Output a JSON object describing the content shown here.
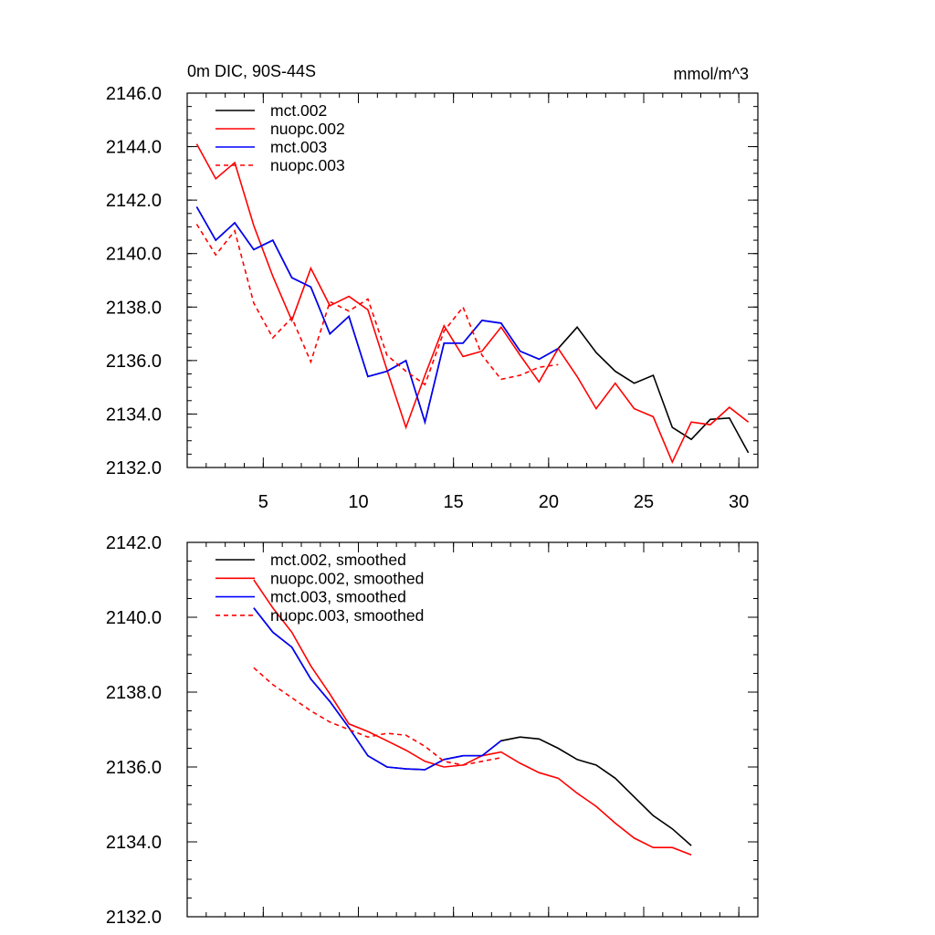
{
  "chart_data": [
    {
      "type": "line",
      "title_left": "0m DIC, 90S-44S",
      "title_right": "mmol/m^3",
      "xlabel": "",
      "ylabel": "",
      "xlim": [
        1,
        31
      ],
      "ylim": [
        2132.0,
        2146.0
      ],
      "yticks": [
        "2132.0",
        "2134.0",
        "2136.0",
        "2138.0",
        "2140.0",
        "2142.0",
        "2144.0",
        "2146.0"
      ],
      "ytick_values": [
        2132,
        2134,
        2136,
        2138,
        2140,
        2142,
        2144,
        2146
      ],
      "xticks": [
        "5",
        "10",
        "15",
        "20",
        "25",
        "30"
      ],
      "xtick_values": [
        5,
        10,
        15,
        20,
        25,
        30
      ],
      "legend_position": "top-left",
      "series": [
        {
          "name": "mct.002",
          "color": "#000000",
          "dash": "solid",
          "x": [
            1.5,
            2.5,
            3.5,
            4.5,
            5.5,
            6.5,
            7.5,
            8.5,
            9.5,
            10.5,
            11.5,
            12.5,
            13.5,
            14.5,
            15.5,
            16.5,
            17.5,
            18.5,
            19.5,
            20.5,
            21.5,
            22.5,
            23.5,
            24.5,
            25.5,
            26.5,
            27.5,
            28.5,
            29.5,
            30.5
          ],
          "values": [
            2141.75,
            2140.5,
            2141.15,
            2140.15,
            2140.5,
            2139.1,
            2138.75,
            2137.0,
            2137.65,
            2135.4,
            2135.6,
            2136.0,
            2133.7,
            2136.65,
            2136.65,
            2137.5,
            2137.4,
            2136.35,
            2136.05,
            2136.45,
            2137.25,
            2136.3,
            2135.6,
            2135.15,
            2135.45,
            2133.5,
            2133.05,
            2133.8,
            2133.85,
            2132.55
          ]
        },
        {
          "name": "nuopc.002",
          "color": "#ff0000",
          "dash": "solid",
          "x": [
            1.5,
            2.5,
            3.5,
            4.5,
            5.5,
            6.5,
            7.5,
            8.5,
            9.5,
            10.5,
            11.5,
            12.5,
            13.5,
            14.5,
            15.5,
            16.5,
            17.5,
            18.5,
            19.5,
            20.5,
            21.5,
            22.5,
            23.5,
            24.5,
            25.5,
            26.5,
            27.5,
            28.5,
            29.5,
            30.5
          ],
          "values": [
            2144.1,
            2142.8,
            2143.4,
            2141.05,
            2139.15,
            2137.5,
            2139.45,
            2138.05,
            2138.4,
            2137.9,
            2135.65,
            2133.5,
            2135.45,
            2137.3,
            2136.15,
            2136.35,
            2137.25,
            2136.2,
            2135.2,
            2136.45,
            2135.4,
            2134.2,
            2135.15,
            2134.2,
            2133.9,
            2132.2,
            2133.7,
            2133.6,
            2134.25,
            2133.7
          ]
        },
        {
          "name": "mct.003",
          "color": "#0000ff",
          "dash": "solid",
          "x": [
            1.5,
            2.5,
            3.5,
            4.5,
            5.5,
            6.5,
            7.5,
            8.5,
            9.5,
            10.5,
            11.5,
            12.5,
            13.5,
            14.5,
            15.5,
            16.5,
            17.5,
            18.5,
            19.5,
            20.5
          ],
          "values": [
            2141.75,
            2140.5,
            2141.15,
            2140.15,
            2140.5,
            2139.1,
            2138.75,
            2137.0,
            2137.65,
            2135.4,
            2135.6,
            2136.0,
            2133.7,
            2136.65,
            2136.65,
            2137.5,
            2137.4,
            2136.35,
            2136.05,
            2136.45
          ]
        },
        {
          "name": "nuopc.003",
          "color": "#ff0000",
          "dash": "dashed",
          "x": [
            1.5,
            2.5,
            3.5,
            4.5,
            5.5,
            6.5,
            7.5,
            8.5,
            9.5,
            10.5,
            11.5,
            12.5,
            13.5,
            14.5,
            15.5,
            16.5,
            17.5,
            18.5,
            19.5,
            20.5
          ],
          "values": [
            2141.1,
            2139.95,
            2140.85,
            2138.15,
            2136.85,
            2137.6,
            2135.95,
            2138.2,
            2137.85,
            2138.3,
            2136.2,
            2135.6,
            2135.1,
            2137.1,
            2138.0,
            2136.2,
            2135.3,
            2135.45,
            2135.75,
            2135.85
          ]
        }
      ]
    },
    {
      "type": "line",
      "title_left": "",
      "title_right": "",
      "xlabel": "",
      "ylabel": "",
      "xlim": [
        1,
        31
      ],
      "ylim": [
        2132.0,
        2142.0
      ],
      "yticks": [
        "2132.0",
        "2134.0",
        "2136.0",
        "2138.0",
        "2140.0",
        "2142.0"
      ],
      "ytick_values": [
        2132,
        2134,
        2136,
        2138,
        2140,
        2142
      ],
      "xticks": [],
      "xtick_values": [
        5,
        10,
        15,
        20,
        25,
        30
      ],
      "legend_position": "top-left",
      "series": [
        {
          "name": "mct.002, smoothed",
          "color": "#000000",
          "dash": "solid",
          "x": [
            4.5,
            5.5,
            6.5,
            7.5,
            8.5,
            9.5,
            10.5,
            11.5,
            12.5,
            13.5,
            14.5,
            15.5,
            16.5,
            17.5,
            18.5,
            19.5,
            20.5,
            21.5,
            22.5,
            23.5,
            24.5,
            25.5,
            26.5,
            27.5
          ],
          "values": [
            2140.25,
            2139.6,
            2139.2,
            2138.35,
            2137.75,
            2137.05,
            2136.3,
            2136.0,
            2135.95,
            2135.93,
            2136.2,
            2136.3,
            2136.3,
            2136.7,
            2136.8,
            2136.75,
            2136.5,
            2136.2,
            2136.05,
            2135.7,
            2135.2,
            2134.7,
            2134.35,
            2133.9
          ]
        },
        {
          "name": "nuopc.002, smoothed",
          "color": "#ff0000",
          "dash": "solid",
          "x": [
            4.5,
            5.5,
            6.5,
            7.5,
            8.5,
            9.5,
            10.5,
            11.5,
            12.5,
            13.5,
            14.5,
            15.5,
            16.5,
            17.5,
            18.5,
            19.5,
            20.5,
            21.5,
            22.5,
            23.5,
            24.5,
            25.5,
            26.5,
            27.5
          ],
          "values": [
            2141.0,
            2140.25,
            2139.6,
            2138.7,
            2137.95,
            2137.15,
            2136.95,
            2136.7,
            2136.45,
            2136.15,
            2136.0,
            2136.05,
            2136.3,
            2136.4,
            2136.1,
            2135.85,
            2135.7,
            2135.3,
            2134.95,
            2134.5,
            2134.1,
            2133.85,
            2133.85,
            2133.65
          ]
        },
        {
          "name": "mct.003, smoothed",
          "color": "#0000ff",
          "dash": "solid",
          "x": [
            4.5,
            5.5,
            6.5,
            7.5,
            8.5,
            9.5,
            10.5,
            11.5,
            12.5,
            13.5,
            14.5,
            15.5,
            16.5,
            17.5
          ],
          "values": [
            2140.25,
            2139.6,
            2139.2,
            2138.35,
            2137.75,
            2137.05,
            2136.3,
            2136.0,
            2135.95,
            2135.93,
            2136.2,
            2136.3,
            2136.3,
            2136.7
          ]
        },
        {
          "name": "nuopc.003, smoothed",
          "color": "#ff0000",
          "dash": "dashed",
          "x": [
            4.5,
            5.5,
            6.5,
            7.5,
            8.5,
            9.5,
            10.5,
            11.5,
            12.5,
            13.5,
            14.5,
            15.5,
            16.5,
            17.5
          ],
          "values": [
            2138.65,
            2138.2,
            2137.85,
            2137.5,
            2137.2,
            2137.0,
            2136.8,
            2136.9,
            2136.85,
            2136.55,
            2136.15,
            2136.05,
            2136.15,
            2136.25
          ]
        }
      ]
    }
  ]
}
